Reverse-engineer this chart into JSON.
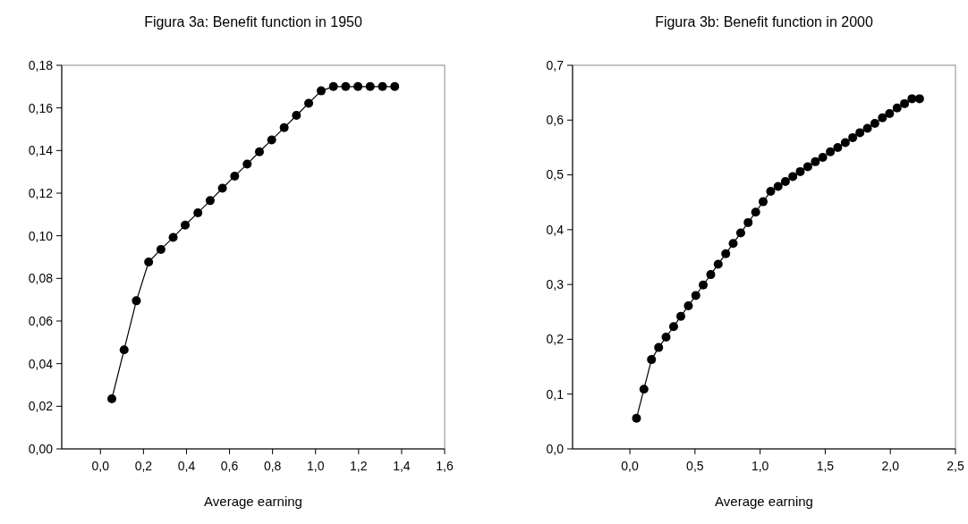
{
  "chart_data": [
    {
      "type": "line",
      "title": "Figura 3a: Benefit function in 1950",
      "xlabel": "Average earning",
      "marker": "circle",
      "line_style": "solid",
      "grid": false,
      "xlim": [
        -0.18,
        1.6
      ],
      "ylim": [
        0,
        0.18
      ],
      "xticks": [
        {
          "value": 0,
          "label": "0,0"
        },
        {
          "value": 0.2,
          "label": "0,2"
        },
        {
          "value": 0.4,
          "label": "0,4"
        },
        {
          "value": 0.6,
          "label": "0,6"
        },
        {
          "value": 0.8,
          "label": "0,8"
        },
        {
          "value": 1.0,
          "label": "1,0"
        },
        {
          "value": 1.2,
          "label": "1,2"
        },
        {
          "value": 1.4,
          "label": "1,4"
        },
        {
          "value": 1.6,
          "label": "1,6"
        }
      ],
      "yticks": [
        {
          "value": 0,
          "label": "0,00"
        },
        {
          "value": 0.02,
          "label": "0,02"
        },
        {
          "value": 0.04,
          "label": "0,04"
        },
        {
          "value": 0.06,
          "label": "0,06"
        },
        {
          "value": 0.08,
          "label": "0,08"
        },
        {
          "value": 0.1,
          "label": "0,10"
        },
        {
          "value": 0.12,
          "label": "0,12"
        },
        {
          "value": 0.14,
          "label": "0,14"
        },
        {
          "value": 0.16,
          "label": "0,16"
        },
        {
          "value": 0.18,
          "label": "0,18"
        }
      ],
      "series": [
        {
          "color": "#000000",
          "x": [
            0.053,
            0.11,
            0.167,
            0.224,
            0.281,
            0.338,
            0.394,
            0.453,
            0.51,
            0.567,
            0.624,
            0.682,
            0.739,
            0.796,
            0.854,
            0.911,
            0.968,
            1.026,
            1.083,
            1.14,
            1.197,
            1.254,
            1.311,
            1.368
          ],
          "values": [
            0.0235,
            0.0465,
            0.0695,
            0.0877,
            0.0936,
            0.0992,
            0.105,
            0.1108,
            0.1165,
            0.1223,
            0.128,
            0.1336,
            0.1394,
            0.145,
            0.1507,
            0.1565,
            0.1622,
            0.168,
            0.17,
            0.17,
            0.17,
            0.17,
            0.17,
            0.17
          ]
        }
      ]
    },
    {
      "type": "line",
      "title": "Figura 3b: Benefit function in 2000",
      "xlabel": "Average earning",
      "marker": "circle",
      "line_style": "solid",
      "grid": false,
      "xlim": [
        -0.44,
        2.5
      ],
      "ylim": [
        0,
        0.7
      ],
      "xticks": [
        {
          "value": 0,
          "label": "0,0"
        },
        {
          "value": 0.5,
          "label": "0,5"
        },
        {
          "value": 1.0,
          "label": "1,0"
        },
        {
          "value": 1.5,
          "label": "1,5"
        },
        {
          "value": 2.0,
          "label": "2,0"
        },
        {
          "value": 2.5,
          "label": "2,5"
        }
      ],
      "yticks": [
        {
          "value": 0,
          "label": "0,0"
        },
        {
          "value": 0.1,
          "label": "0,1"
        },
        {
          "value": 0.2,
          "label": "0,2"
        },
        {
          "value": 0.3,
          "label": "0,3"
        },
        {
          "value": 0.4,
          "label": "0,4"
        },
        {
          "value": 0.5,
          "label": "0,5"
        },
        {
          "value": 0.6,
          "label": "0,6"
        },
        {
          "value": 0.7,
          "label": "0,7"
        }
      ],
      "series": [
        {
          "color": "#000000",
          "x": [
            0.051,
            0.108,
            0.166,
            0.221,
            0.278,
            0.336,
            0.391,
            0.449,
            0.506,
            0.563,
            0.621,
            0.678,
            0.736,
            0.793,
            0.851,
            0.908,
            0.966,
            1.023,
            1.081,
            1.138,
            1.194,
            1.251,
            1.308,
            1.366,
            1.424,
            1.481,
            1.539,
            1.596,
            1.654,
            1.711,
            1.766,
            1.824,
            1.881,
            1.939,
            1.994,
            2.052,
            2.109,
            2.166,
            2.224
          ],
          "values": [
            0.056,
            0.109,
            0.163,
            0.185,
            0.204,
            0.223,
            0.242,
            0.261,
            0.28,
            0.299,
            0.318,
            0.337,
            0.356,
            0.375,
            0.394,
            0.413,
            0.432,
            0.451,
            0.47,
            0.479,
            0.488,
            0.497,
            0.506,
            0.515,
            0.524,
            0.532,
            0.542,
            0.55,
            0.559,
            0.568,
            0.577,
            0.585,
            0.594,
            0.604,
            0.612,
            0.622,
            0.63,
            0.639,
            0.639
          ]
        }
      ]
    }
  ]
}
